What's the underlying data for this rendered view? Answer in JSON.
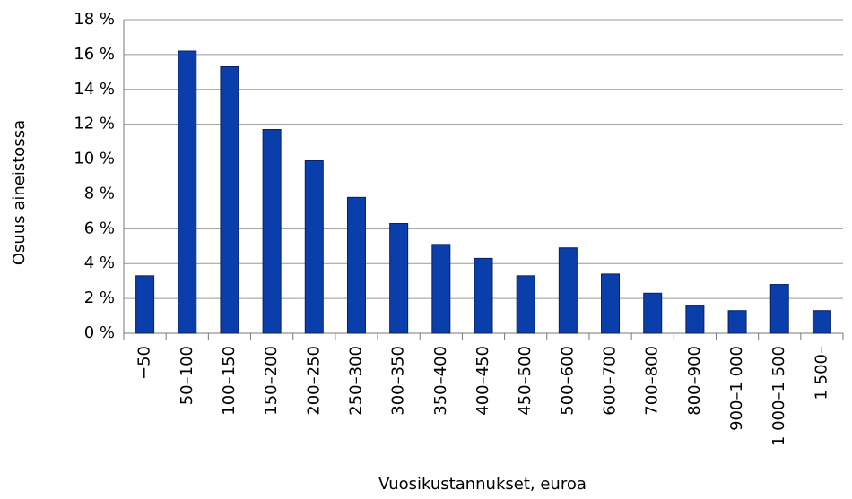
{
  "chart_data": {
    "type": "bar",
    "x_label": "Vuosikustannukset, euroa",
    "y_label": "Osuus aineistossa",
    "categories": [
      "−50",
      "50–100",
      "100–150",
      "150–200",
      "200–250",
      "250–300",
      "300–350",
      "350–400",
      "400–450",
      "450–500",
      "500–600",
      "600–700",
      "700–800",
      "800–900",
      "900–1 000",
      "1 000–1 500",
      "1 500–"
    ],
    "values": [
      3.3,
      16.2,
      15.3,
      11.7,
      9.9,
      7.8,
      6.3,
      5.1,
      4.3,
      3.3,
      4.9,
      3.4,
      2.3,
      1.6,
      1.3,
      2.8,
      1.3
    ],
    "color": "#0a3eaa",
    "ylim": [
      0,
      18
    ],
    "yticks": [
      {
        "value": 0,
        "label": "0 %"
      },
      {
        "value": 2,
        "label": "2 %"
      },
      {
        "value": 4,
        "label": "4 %"
      },
      {
        "value": 6,
        "label": "6 %"
      },
      {
        "value": 8,
        "label": "8 %"
      },
      {
        "value": 10,
        "label": "10 %"
      },
      {
        "value": 12,
        "label": "12 %"
      },
      {
        "value": 14,
        "label": "14 %"
      },
      {
        "value": 16,
        "label": "16 %"
      },
      {
        "value": 18,
        "label": "18 %"
      }
    ],
    "grid": true
  }
}
